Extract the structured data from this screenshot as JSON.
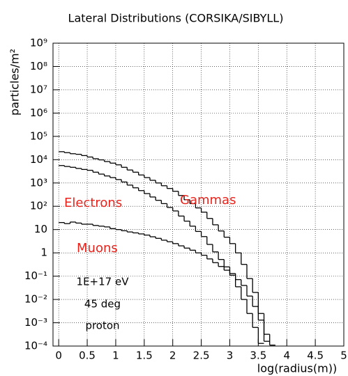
{
  "chart_data": {
    "type": "step",
    "title": "Lateral Distributions (CORSIKA/SIBYLL)",
    "y_label": "particles/m²",
    "x_label": "log(radius(m))",
    "log_y": true,
    "grid": true,
    "color": "#000000",
    "xlim": [
      -0.1,
      5
    ],
    "ylim": [
      0.0001,
      1000000000
    ],
    "xticks": [
      0,
      0.5,
      1,
      1.5,
      2,
      2.5,
      3,
      3.5,
      4,
      4.5,
      5
    ],
    "yticks": [
      {
        "value": 0.0001,
        "label": "10⁻⁴"
      },
      {
        "value": 0.001,
        "label": "10⁻³"
      },
      {
        "value": 0.01,
        "label": "10⁻²"
      },
      {
        "value": 0.1,
        "label": "10⁻¹"
      },
      1,
      10,
      {
        "value": 100,
        "label": "10²"
      },
      {
        "value": 1000,
        "label": "10³"
      },
      {
        "value": 10000,
        "label": "10⁴"
      },
      {
        "value": 100000,
        "label": "10⁵"
      },
      {
        "value": 1000000,
        "label": "10⁶"
      },
      {
        "value": 10000000,
        "label": "10⁷"
      },
      {
        "value": 100000000,
        "label": "10⁸"
      },
      {
        "value": 1000000000,
        "label": "10⁹"
      }
    ],
    "x": [
      0,
      0.1,
      0.2,
      0.3,
      0.4,
      0.5,
      0.6,
      0.7,
      0.8,
      0.9,
      1.0,
      1.1,
      1.2,
      1.3,
      1.4,
      1.5,
      1.6,
      1.7,
      1.8,
      1.9,
      2.0,
      2.1,
      2.2,
      2.3,
      2.4,
      2.5,
      2.6,
      2.7,
      2.8,
      2.9,
      3.0,
      3.1,
      3.2,
      3.3,
      3.4,
      3.5,
      3.6,
      3.7
    ],
    "series": [
      {
        "name": "Electrons",
        "color": "#000000",
        "label_color": "#e8231c",
        "values": [
          5600,
          5100,
          4700,
          4200,
          3800,
          3500,
          2900,
          2400,
          2000,
          1700,
          1400,
          1100,
          810,
          620,
          470,
          350,
          250,
          180,
          130,
          89,
          63,
          38,
          23,
          14,
          8.3,
          5,
          2.3,
          1.1,
          0.52,
          0.25,
          0.11,
          0.035,
          0.01,
          0.0025,
          0.00063,
          0.00013,
          null,
          null
        ]
      },
      {
        "name": "Gammas",
        "color": "#000000",
        "label_color": "#e8231c",
        "values": [
          22000,
          20000,
          18000,
          17000,
          15000,
          13000,
          11000,
          9800,
          8300,
          7100,
          6000,
          4700,
          3600,
          2900,
          2200,
          1700,
          1300,
          1000,
          760,
          580,
          440,
          290,
          190,
          130,
          85,
          56,
          30,
          16,
          8.7,
          4.7,
          2.5,
          1,
          0.32,
          0.079,
          0.02,
          0.0025,
          0.00016,
          null
        ]
      },
      {
        "name": "Muons",
        "color": "#000000",
        "label_color": "#e8231c",
        "values": [
          20,
          18,
          21,
          19,
          17,
          17,
          15,
          14,
          13,
          11,
          10,
          8.9,
          7.9,
          7.2,
          6.5,
          5.8,
          4.9,
          4.2,
          3.5,
          3,
          2.5,
          2,
          1.6,
          1.3,
          1,
          0.79,
          0.55,
          0.38,
          0.26,
          0.18,
          0.13,
          0.071,
          0.04,
          0.014,
          0.005,
          0.0013,
          0.00032,
          0.00011
        ]
      }
    ],
    "annotations": [
      "1E+17 eV",
      "45 deg",
      "proton"
    ]
  }
}
